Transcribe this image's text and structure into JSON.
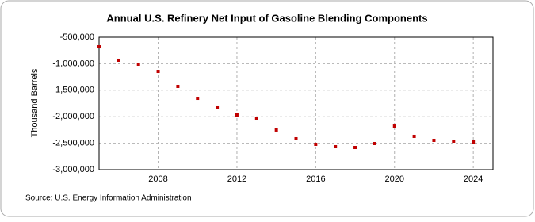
{
  "chart_data": {
    "type": "scatter",
    "title": "Annual U.S. Refinery Net Input of Gasoline Blending Components",
    "y_label": "Thousand Barrels",
    "source": "Source: U.S. Energy Information Administration",
    "x": [
      2005,
      2006,
      2007,
      2008,
      2009,
      2010,
      2011,
      2012,
      2013,
      2014,
      2015,
      2016,
      2017,
      2018,
      2019,
      2020,
      2021,
      2022,
      2023,
      2024
    ],
    "series": [
      {
        "name": "Refinery Net Input of Gasoline Blending Components",
        "color": "#c00000",
        "values": [
          -680000,
          -934000,
          -1009000,
          -1144000,
          -1428000,
          -1653000,
          -1832000,
          -1967000,
          -2027000,
          -2251000,
          -2416000,
          -2521000,
          -2566000,
          -2581000,
          -2506000,
          -2177000,
          -2371000,
          -2446000,
          -2461000,
          -2476000
        ]
      }
    ],
    "xlim": [
      2005,
      2025
    ],
    "xticks": [
      2008,
      2012,
      2016,
      2020,
      2024
    ],
    "ylim": [
      -3000000,
      -500000
    ],
    "yticks": [
      {
        "value": -3000000,
        "label": "-3,000,000"
      },
      {
        "value": -2500000,
        "label": "-2,500,000"
      },
      {
        "value": -2000000,
        "label": "-2,000,000"
      },
      {
        "value": -1500000,
        "label": "-1,500,000"
      },
      {
        "value": -1000000,
        "label": "-1,000,000"
      },
      {
        "value": -500000,
        "label": "-500,000"
      }
    ],
    "grid": true
  }
}
